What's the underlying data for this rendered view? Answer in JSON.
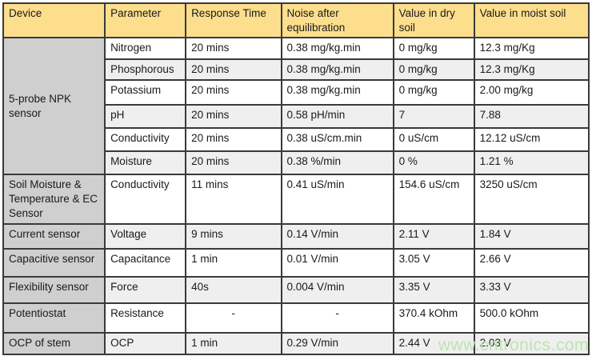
{
  "table": {
    "headers": [
      "Device",
      "Parameter",
      "Response Time",
      "Noise after equilibration",
      "Value in dry soil",
      "Value in moist soil"
    ],
    "devices": [
      {
        "name": "5-probe NPK sensor",
        "rows": [
          [
            "Nitrogen",
            "20 mins",
            "0.38 mg/kg.min",
            "0 mg/kg",
            "12.3 mg/Kg"
          ],
          [
            "Phosphorous",
            "20 mins",
            "0.38 mg/kg.min",
            "0 mg/kg",
            "12.3 mg/Kg"
          ],
          [
            "Potassium",
            "20 mins",
            "0.38 mg/kg.min",
            "0 mg/kg",
            "2.00 mg/kg"
          ],
          [
            "pH",
            "20 mins",
            "0.58 pH/min",
            "7",
            "7.88"
          ],
          [
            "Conductivity",
            "20 mins",
            "0.38 uS/cm.min",
            "0 uS/cm",
            "12.12 uS/cm"
          ],
          [
            "Moisture",
            "20 mins",
            "0.38 %/min",
            "0 %",
            "1.21 %"
          ]
        ]
      },
      {
        "name": "Soil Moisture & Temperature & EC Sensor",
        "rows": [
          [
            "Conductivity",
            "11 mins",
            "0.41 uS/min",
            "154.6 uS/cm",
            "3250 uS/cm"
          ]
        ]
      },
      {
        "name": "Current sensor",
        "rows": [
          [
            "Voltage",
            "9 mins",
            "0.14 V/min",
            "2.11 V",
            "1.84 V"
          ]
        ]
      },
      {
        "name": "Capacitive sensor",
        "rows": [
          [
            "Capacitance",
            "1 min",
            "0.01 V/min",
            "3.05 V",
            "2.66 V"
          ]
        ]
      },
      {
        "name": "Flexibility sensor",
        "rows": [
          [
            "Force",
            "40s",
            "0.004 V/min",
            "3.35 V",
            "3.33 V"
          ]
        ]
      },
      {
        "name": "Potentiostat",
        "rows": [
          [
            "Resistance",
            "-",
            "-",
            "370.4 kOhm",
            "500.0 kOhm"
          ]
        ]
      },
      {
        "name": "OCP of stem",
        "rows": [
          [
            "OCP",
            "1 min",
            "0.29 V/min",
            "2.44 V",
            "2.03 V"
          ]
        ]
      }
    ],
    "colors": {
      "header_bg": "#fcde8d",
      "device_col_bg": "#cfcfcf",
      "stripe_bg": "#efefef",
      "border": "#3a3a3a"
    }
  },
  "watermark": {
    "text": "www.cntronics.com",
    "color": "#bce4ae"
  }
}
